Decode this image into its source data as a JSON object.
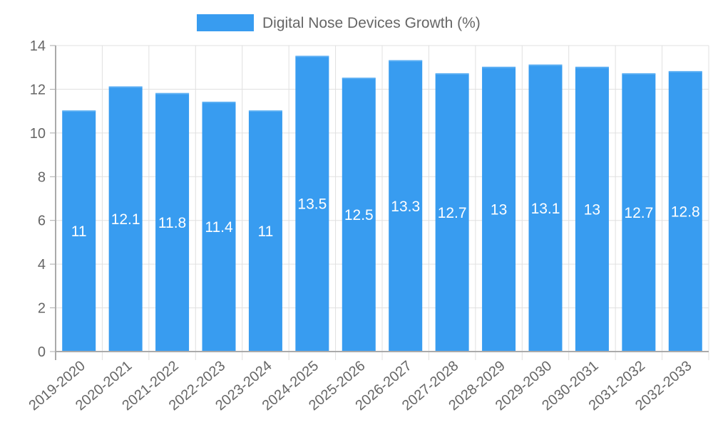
{
  "chart_data": {
    "type": "bar",
    "title": "",
    "legend": [
      {
        "label": "Digital Nose Devices Growth (%)",
        "color": "#389CF0"
      }
    ],
    "legend_position": "top",
    "xlabel": "",
    "ylabel": "",
    "ylim": [
      0,
      14
    ],
    "yticks": [
      0,
      2,
      4,
      6,
      8,
      10,
      12,
      14
    ],
    "grid": true,
    "categories": [
      "2019-2020",
      "2020-2021",
      "2021-2022",
      "2022-2023",
      "2023-2024",
      "2024-2025",
      "2025-2026",
      "2026-2027",
      "2027-2028",
      "2028-2029",
      "2029-2030",
      "2030-2031",
      "2031-2032",
      "2032-2033"
    ],
    "series": [
      {
        "name": "Digital Nose Devices Growth (%)",
        "values": [
          11,
          12.1,
          11.8,
          11.4,
          11,
          13.5,
          12.5,
          13.3,
          12.7,
          13,
          13.1,
          13,
          12.7,
          12.8
        ]
      }
    ],
    "data_labels": [
      "11",
      "12.1",
      "11.8",
      "11.4",
      "11",
      "13.5",
      "12.5",
      "13.3",
      "12.7",
      "13",
      "13.1",
      "13",
      "12.7",
      "12.8"
    ]
  },
  "legend": {
    "label": "Digital Nose Devices Growth (%)"
  }
}
